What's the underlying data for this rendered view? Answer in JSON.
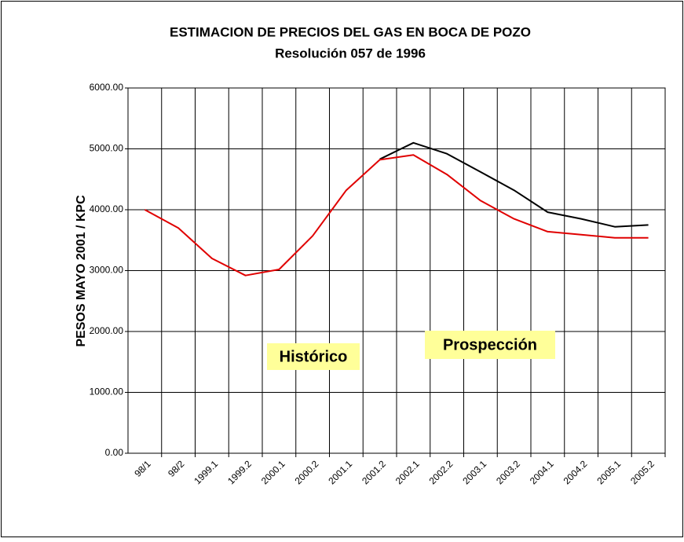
{
  "chart_data": {
    "type": "line",
    "title": "ESTIMACION DE PRECIOS DEL GAS EN BOCA DE POZO",
    "subtitle": "Resolución 057 de 1996",
    "y_label": "PESOS MAYO 2001 / KPC",
    "annotations": [
      "Histórico",
      "Prospección"
    ],
    "annotation_color": "#ffff99",
    "categories": [
      "98/1",
      "98/2",
      "1999.1",
      "1999.2",
      "2000.1",
      "2000.2",
      "2001.1",
      "2001.2",
      "2002.1",
      "2002.2",
      "2003.1",
      "2003.2",
      "2004.1",
      "2004.2",
      "2005.1",
      "2005.2"
    ],
    "series": [
      {
        "color": "#000000",
        "values": [
          null,
          null,
          null,
          null,
          null,
          null,
          null,
          4830,
          5100,
          4920,
          4620,
          4320,
          3960,
          3850,
          3720,
          3750
        ]
      },
      {
        "color": "#e00000",
        "values": [
          4000,
          3700,
          3200,
          2920,
          3020,
          3570,
          4320,
          4820,
          4900,
          4580,
          4150,
          3850,
          3640,
          3590,
          3540,
          3540
        ]
      }
    ],
    "ylim": [
      0,
      6000
    ],
    "yticks": [
      {
        "value": 0,
        "label": "0.00"
      },
      {
        "value": 1000,
        "label": "1000.00"
      },
      {
        "value": 2000,
        "label": "2000.00"
      },
      {
        "value": 3000,
        "label": "3000.00"
      },
      {
        "value": 4000,
        "label": "4000.00"
      },
      {
        "value": 5000,
        "label": "5000.00"
      },
      {
        "value": 6000,
        "label": "6000.00"
      }
    ],
    "grid": true
  }
}
